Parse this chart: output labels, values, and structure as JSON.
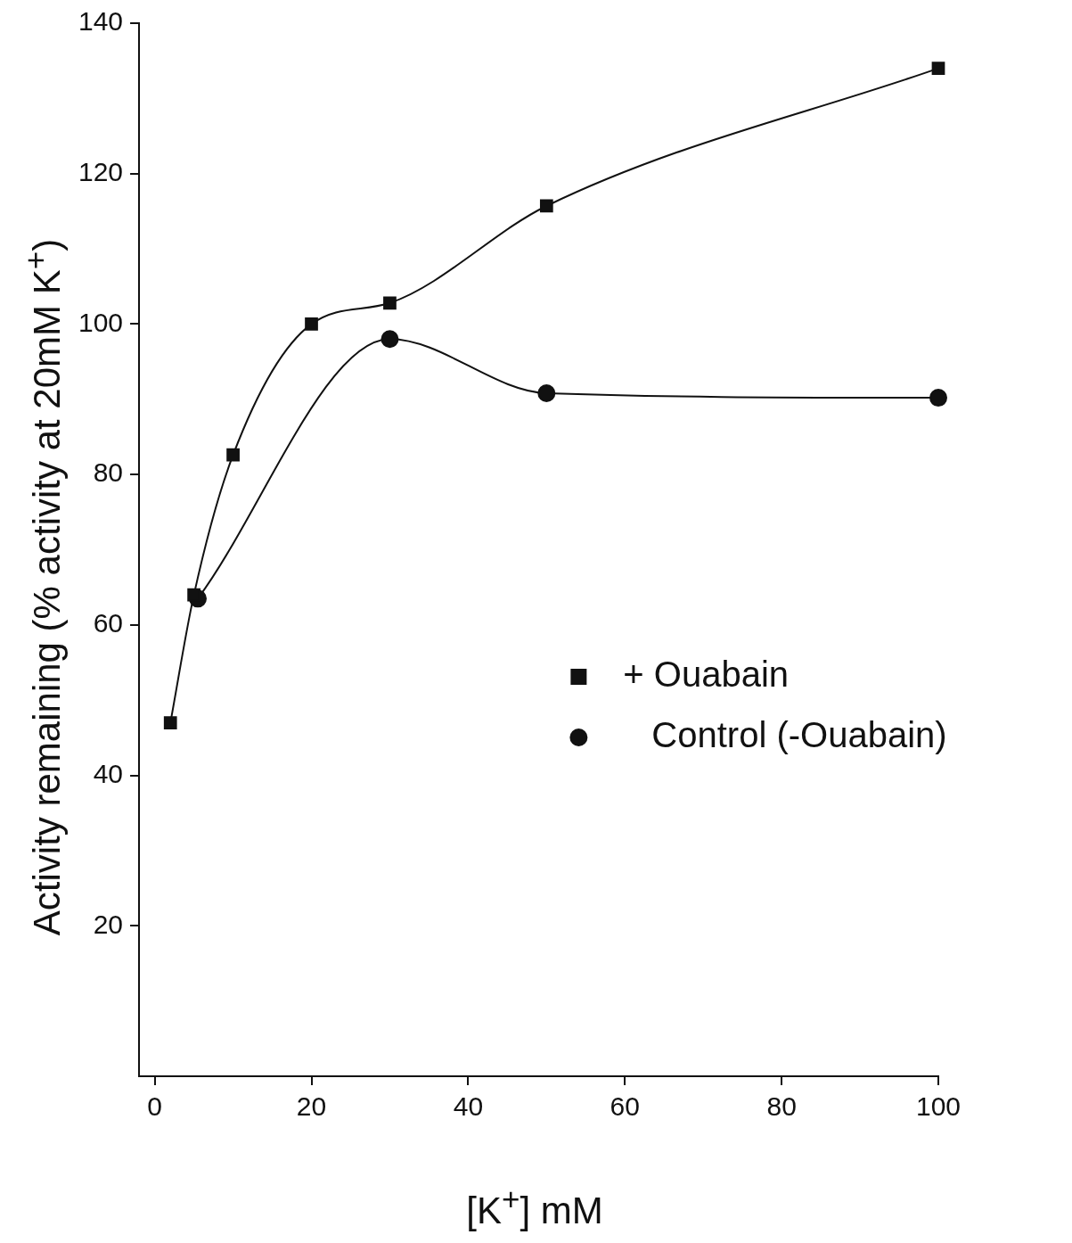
{
  "chart_data": {
    "type": "line",
    "xlabel": "[K$^{+}$] mM",
    "ylabel": "Activity remaining (% activity at 20mM K$^{+}$)",
    "xlim": [
      -2,
      100
    ],
    "xticks": [
      0,
      20,
      40,
      60,
      80,
      100
    ],
    "ylim": [
      0,
      140
    ],
    "yticks": [
      20,
      40,
      60,
      80,
      100,
      120,
      140
    ],
    "grid": false,
    "legend": "bottom right",
    "line_style": "solid",
    "series": [
      {
        "name": "+ Ouabain",
        "color": "#111111",
        "marker": "square",
        "x": [
          2,
          5,
          10,
          20,
          30,
          50,
          100
        ],
        "values": [
          47,
          64,
          82.6,
          100,
          102.8,
          115.7,
          134
        ]
      },
      {
        "name": "Control (-Ouabain)",
        "color": "#111111",
        "marker": "circle",
        "x": [
          5.5,
          30,
          50,
          100
        ],
        "values": [
          63.5,
          98,
          90.8,
          90.2
        ]
      }
    ]
  }
}
